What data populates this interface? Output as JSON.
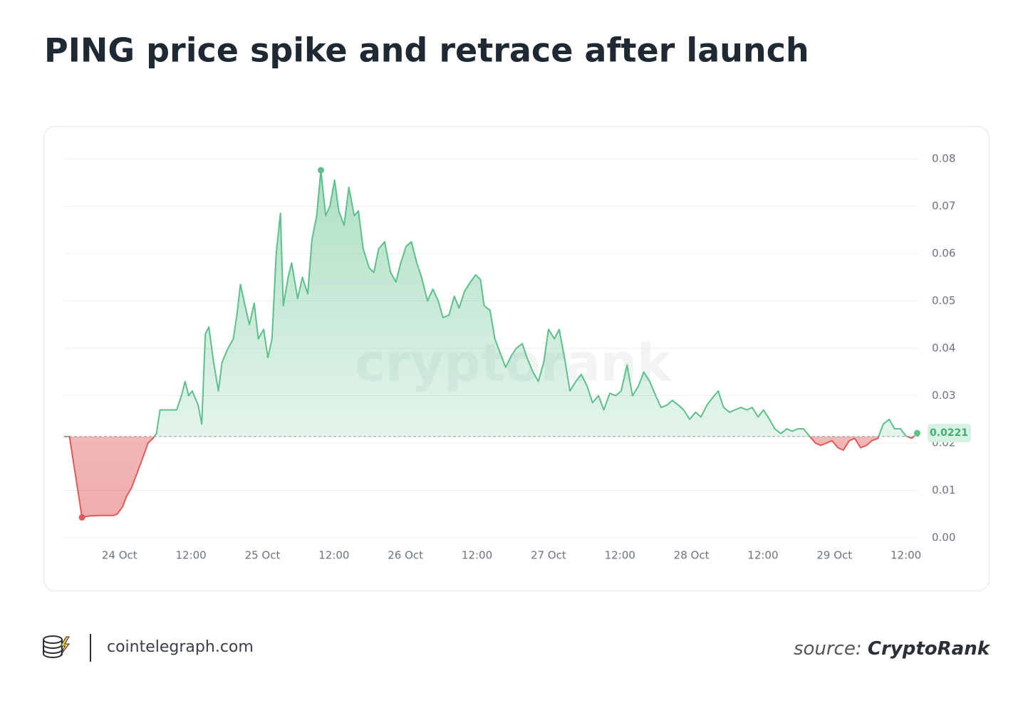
{
  "chart_data": {
    "type": "line",
    "title": "PING price spike and retrace after launch",
    "watermark": "cryptorank",
    "footer_site": "cointelegraph.com",
    "source_label": "source:",
    "source_name": "CryptoRank",
    "color": "#5cc08a",
    "below_color": "#e05a5a",
    "baseline": 0.0214,
    "current_value": 0.0221,
    "grid": true,
    "xlim": [
      -9.3,
      134.2
    ],
    "ylim": [
      0,
      0.08
    ],
    "yticks": [
      {
        "value": 0,
        "label": "0.00"
      },
      0.01,
      0.02,
      0.03,
      0.04,
      0.05,
      0.06,
      0.07,
      0.08
    ],
    "xticks": [
      {
        "value": 0,
        "label": "24 Oct"
      },
      {
        "value": 12,
        "label": "12:00"
      },
      {
        "value": 24,
        "label": "25 Oct"
      },
      {
        "value": 36,
        "label": "12:00"
      },
      {
        "value": 48,
        "label": "26 Oct"
      },
      {
        "value": 60,
        "label": "12:00"
      },
      {
        "value": 72,
        "label": "27 Oct"
      },
      {
        "value": 84,
        "label": "12:00"
      },
      {
        "value": 96,
        "label": "28 Oct"
      },
      {
        "value": 108,
        "label": "12:00"
      },
      {
        "value": 120,
        "label": "29 Oct"
      },
      {
        "value": 132,
        "label": "12:00"
      }
    ],
    "x": [
      -9.3,
      -8.4,
      -6.3,
      -5.1,
      -3.3,
      -1,
      -0.4,
      0.5,
      1.2,
      2,
      2.9,
      3.8,
      4.8,
      5.6,
      6.2,
      6.8,
      9.6,
      10.4,
      11,
      11.6,
      12.2,
      13.2,
      13.8,
      14.4,
      15,
      15.8,
      16.6,
      17.2,
      18.2,
      19.1,
      19.7,
      20.3,
      20.9,
      21.8,
      22.6,
      23.3,
      24.2,
      24.9,
      25.6,
      26.3,
      27,
      27.5,
      28.3,
      28.9,
      29.9,
      30.7,
      31.6,
      32.3,
      33.1,
      33.8,
      34.6,
      35.3,
      36.1,
      36.8,
      37.7,
      38.5,
      39.4,
      40.1,
      40.9,
      41.9,
      42.7,
      43.5,
      44.5,
      45.5,
      46.4,
      47.2,
      48.1,
      49,
      49.9,
      50.7,
      51.7,
      52.6,
      53.5,
      54.3,
      55.3,
      56.2,
      57,
      57.9,
      58.9,
      59.8,
      60.6,
      61.2,
      62.2,
      63,
      63.9,
      64.8,
      65.8,
      66.6,
      67.6,
      68.4,
      69.4,
      70.3,
      71.2,
      72,
      73,
      73.8,
      74.7,
      75.6,
      76.6,
      77.5,
      78.5,
      79.4,
      80.4,
      81.3,
      82.3,
      83.3,
      84.2,
      85.2,
      86.1,
      87.1,
      88,
      89,
      90,
      90.9,
      91.9,
      92.8,
      93.8,
      94.7,
      95.7,
      96.7,
      97.6,
      98.6,
      99.5,
      100.5,
      101.4,
      102.4,
      103.3,
      104.3,
      105.3,
      106.2,
      107.2,
      108.1,
      109.1,
      110,
      111,
      112,
      112.9,
      113.9,
      114.8,
      115.8,
      116.8,
      117.7,
      118.7,
      119.6,
      120.6,
      121.5,
      122.5,
      123.4,
      124.4,
      125.4,
      126.3,
      127.3,
      128.2,
      129.2,
      130.1,
      131.1,
      132,
      133,
      133.9
    ],
    "values": [
      0.0214,
      0.0214,
      0.0043,
      0.0046,
      0.0047,
      0.0047,
      0.005,
      0.0065,
      0.0088,
      0.0105,
      0.0135,
      0.0165,
      0.02,
      0.021,
      0.022,
      0.027,
      0.027,
      0.03,
      0.033,
      0.03,
      0.031,
      0.028,
      0.024,
      0.043,
      0.0445,
      0.037,
      0.031,
      0.037,
      0.04,
      0.042,
      0.047,
      0.0535,
      0.05,
      0.045,
      0.0495,
      0.042,
      0.044,
      0.038,
      0.042,
      0.06,
      0.0685,
      0.049,
      0.055,
      0.058,
      0.0505,
      0.055,
      0.0515,
      0.063,
      0.068,
      0.0776,
      0.068,
      0.07,
      0.0755,
      0.069,
      0.066,
      0.074,
      0.068,
      0.069,
      0.061,
      0.057,
      0.056,
      0.061,
      0.0625,
      0.056,
      0.054,
      0.058,
      0.0615,
      0.0625,
      0.058,
      0.055,
      0.05,
      0.0525,
      0.05,
      0.0465,
      0.047,
      0.051,
      0.0485,
      0.052,
      0.054,
      0.0555,
      0.0545,
      0.049,
      0.048,
      0.042,
      0.039,
      0.036,
      0.0385,
      0.04,
      0.041,
      0.038,
      0.035,
      0.033,
      0.037,
      0.044,
      0.042,
      0.044,
      0.038,
      0.031,
      0.033,
      0.0345,
      0.032,
      0.0285,
      0.03,
      0.027,
      0.0305,
      0.03,
      0.031,
      0.0365,
      0.03,
      0.032,
      0.035,
      0.033,
      0.03,
      0.0275,
      0.028,
      0.029,
      0.028,
      0.027,
      0.025,
      0.0265,
      0.0255,
      0.028,
      0.0295,
      0.031,
      0.0275,
      0.0265,
      0.027,
      0.0275,
      0.027,
      0.0275,
      0.0255,
      0.027,
      0.025,
      0.023,
      0.022,
      0.023,
      0.0225,
      0.023,
      0.023,
      0.0215,
      0.02,
      0.0195,
      0.02,
      0.0205,
      0.019,
      0.0185,
      0.0205,
      0.021,
      0.019,
      0.0195,
      0.0205,
      0.021,
      0.024,
      0.025,
      0.023,
      0.023,
      0.0215,
      0.021,
      0.0221
    ]
  }
}
